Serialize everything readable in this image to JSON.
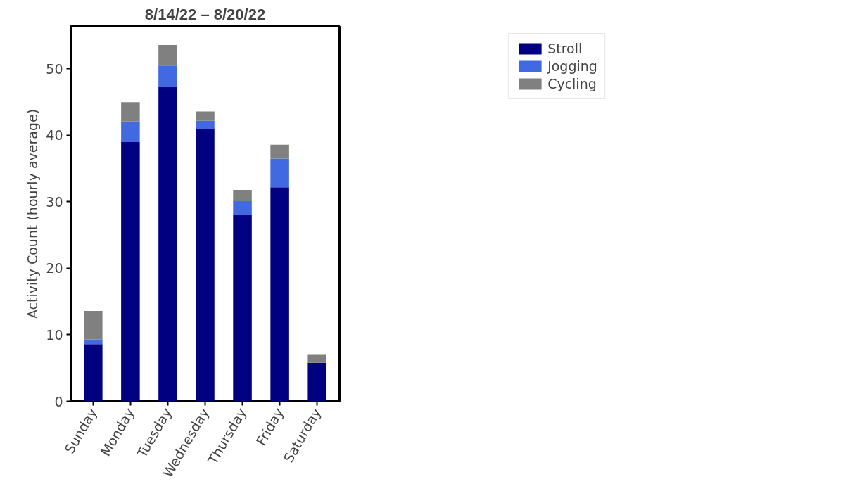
{
  "chart_data": {
    "type": "bar",
    "title": "8/14/22 – 8/20/22",
    "ylabel": "Activity Count (hourly average)",
    "categories": [
      "Sunday",
      "Monday",
      "Tuesday",
      "Wednesday",
      "Thursday",
      "Friday",
      "Saturday"
    ],
    "stacked": true,
    "series": [
      {
        "name": "Stroll",
        "color": "#000080",
        "values": [
          8.6,
          39.0,
          47.3,
          40.9,
          28.1,
          32.2,
          5.8
        ]
      },
      {
        "name": "Jogging",
        "color": "#4169e1",
        "values": [
          0.7,
          3.1,
          3.2,
          1.3,
          2.0,
          4.3,
          0
        ]
      },
      {
        "name": "Cycling",
        "color": "#808080",
        "values": [
          4.3,
          2.9,
          3.1,
          1.4,
          1.7,
          2.1,
          1.3
        ]
      }
    ],
    "ylim": [
      0,
      56.4
    ],
    "yticks": [
      0,
      10,
      20,
      30,
      40,
      50
    ],
    "grid": false,
    "legend": "top right"
  }
}
